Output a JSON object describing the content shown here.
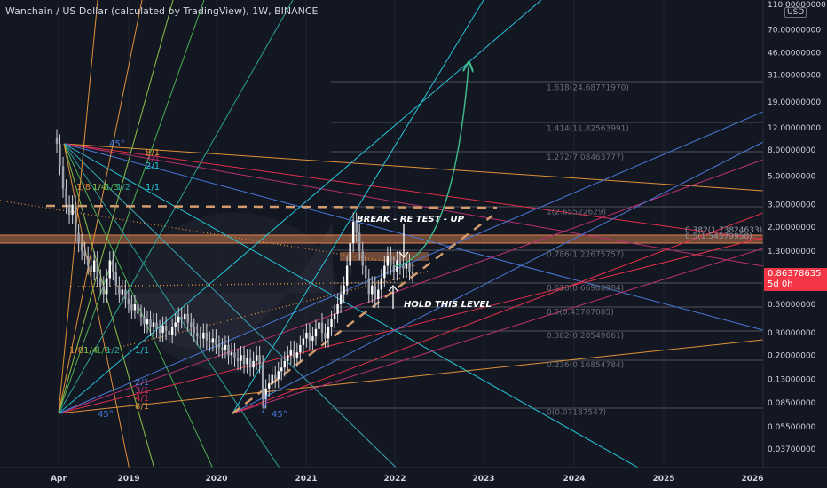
{
  "header": {
    "title": "Wanchain / US Dollar (calculated by TradingView), 1W, BINANCE",
    "currency": "USD"
  },
  "last_price": {
    "value": "0.86378635",
    "countdown": "5d 0h",
    "color": "#f23645"
  },
  "annotations": {
    "break": "BREAK - RE TEST - UP",
    "hold": "HOLD THIS LEVEL"
  },
  "fib_labels": [
    {
      "text": "1.618(24.68771970)",
      "price": 24.69
    },
    {
      "text": "1.414(11.82563991)",
      "price": 11.83
    },
    {
      "text": "1.272(7.08463777)",
      "price": 7.08
    },
    {
      "text": "1(2.65522629)",
      "price": 2.655
    },
    {
      "text": "0.786(1.22675757)",
      "price": 1.2268
    },
    {
      "text": "0.618(0.66908984)",
      "price": 0.669
    },
    {
      "text": "0.5(0.43707085)",
      "price": 0.437
    },
    {
      "text": "0.382(0.28549661)",
      "price": 0.2855
    },
    {
      "text": "0.236(0.16854784)",
      "price": 0.1685
    },
    {
      "text": "0(0.07187547)",
      "price": 0.0719
    }
  ],
  "fib_right_labels": [
    {
      "text": "0.382(1.73824633)",
      "price": 1.738
    },
    {
      "text": "0.5(1.54579958)",
      "price": 1.546
    }
  ],
  "gann_labels_top": [
    "45°",
    "8/1",
    "3/1",
    "2/1",
    "1/8",
    "1/4",
    "1/3",
    "1/2",
    "1/1"
  ],
  "gann_labels_bottom": [
    "1/8",
    "1/4",
    "1/3",
    "1/2",
    "1/1",
    "2/1",
    "3/1",
    "4/1",
    "8/1",
    "45°"
  ],
  "gann_labels_mid": [
    "45°"
  ],
  "chart_data": {
    "type": "candlestick",
    "title": "Wanchain / US Dollar (calculated by TradingView), 1W, BINANCE",
    "x_axis": {
      "tick_labels": [
        "Apr",
        "2019",
        "2020",
        "2021",
        "2022",
        "2023",
        "2024",
        "2025",
        "2026"
      ]
    },
    "y_axis": {
      "scale": "log",
      "tick_labels": [
        "110.00000000",
        "70.00000000",
        "46.00000000",
        "31.00000000",
        "19.00000000",
        "12.00000000",
        "8.00000000",
        "5.00000000",
        "3.00000000",
        "2.00000000",
        "1.30000000",
        "0.50000000",
        "0.30000000",
        "0.20000000",
        "0.13000000",
        "0.08500000",
        "0.05500000",
        "0.03700000"
      ],
      "tick_values": [
        110,
        70,
        46,
        31,
        19,
        12,
        8,
        5,
        3,
        2,
        1.3,
        0.5,
        0.3,
        0.2,
        0.13,
        0.085,
        0.055,
        0.037
      ]
    },
    "last_price": 0.86378635,
    "ohlc_weekly_close_approx": [
      9,
      6,
      4,
      3,
      2.5,
      3,
      1.8,
      1.5,
      1.3,
      1.2,
      1,
      0.9,
      1.1,
      0.8,
      0.7,
      0.6,
      0.8,
      1.1,
      0.9,
      0.7,
      0.6,
      0.65,
      0.55,
      0.5,
      0.45,
      0.5,
      0.42,
      0.4,
      0.35,
      0.38,
      0.33,
      0.36,
      0.32,
      0.3,
      0.34,
      0.31,
      0.29,
      0.33,
      0.36,
      0.4,
      0.38,
      0.42,
      0.36,
      0.33,
      0.3,
      0.28,
      0.27,
      0.3,
      0.26,
      0.25,
      0.27,
      0.24,
      0.23,
      0.22,
      0.24,
      0.2,
      0.21,
      0.19,
      0.18,
      0.2,
      0.17,
      0.19,
      0.16,
      0.18,
      0.2,
      0.17,
      0.09,
      0.11,
      0.12,
      0.14,
      0.13,
      0.15,
      0.16,
      0.18,
      0.2,
      0.22,
      0.19,
      0.21,
      0.24,
      0.27,
      0.3,
      0.26,
      0.28,
      0.32,
      0.36,
      0.3,
      0.27,
      0.33,
      0.38,
      0.42,
      0.5,
      0.6,
      0.7,
      1.0,
      1.5,
      2.2,
      1.8,
      1.3,
      1.0,
      0.8,
      0.6,
      0.7,
      0.55,
      0.65,
      0.8,
      1.0,
      1.2,
      1.0,
      0.9,
      1.1,
      1.0,
      0.95,
      1.05,
      0.9,
      0.86
    ]
  },
  "colors": {
    "background": "#131722",
    "bull": "#ffffff",
    "bear": "#e8e8e8",
    "gann_orange": "#e0913a",
    "gann_green": "#8bc34a",
    "gann_teal": "#26c6da",
    "gann_blue": "#4878d8",
    "gann_red": "#e0304a",
    "fib_gray": "#787b86",
    "trend_dash": "#d29b6e",
    "arrow_green": "#3fb58a"
  }
}
